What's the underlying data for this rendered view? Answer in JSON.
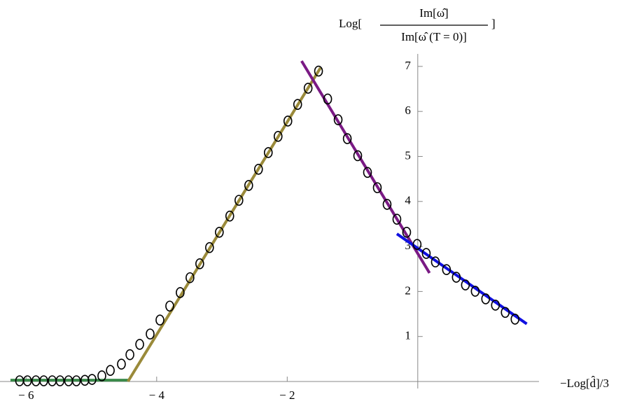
{
  "chart_data": {
    "type": "scatter",
    "x_label": "−Log[d̂]/3",
    "y_label": {
      "prefix": "Log[",
      "numerator": "Im[ω̂]",
      "denominator": "Im[ω̂ (T = 0)]",
      "suffix": "]"
    },
    "xlim": [
      -6.25,
      1.75
    ],
    "ylim": [
      0,
      7.2
    ],
    "xticks": [
      {
        "value": -6,
        "label": "− 6"
      },
      {
        "value": -4,
        "label": "− 4"
      },
      {
        "value": -2,
        "label": "− 2"
      }
    ],
    "yticks": [
      1,
      2,
      3,
      4,
      5,
      6,
      7
    ],
    "points": {
      "color": "#000000",
      "x": [
        -6.1,
        -5.98,
        -5.85,
        -5.73,
        -5.6,
        -5.48,
        -5.35,
        -5.23,
        -5.1,
        -4.99,
        -4.84,
        -4.71,
        -4.54,
        -4.41,
        -4.26,
        -4.1,
        -3.95,
        -3.8,
        -3.64,
        -3.49,
        -3.34,
        -3.19,
        -3.04,
        -2.88,
        -2.74,
        -2.59,
        -2.44,
        -2.29,
        -2.14,
        -1.99,
        -1.84,
        -1.68,
        -1.52,
        -1.38,
        -1.22,
        -1.08,
        -0.92,
        -0.77,
        -0.62,
        -0.47,
        -0.32,
        -0.17,
        -0.01,
        0.13,
        0.27,
        0.44,
        0.59,
        0.73,
        0.88,
        1.04,
        1.19,
        1.34,
        1.49
      ],
      "values": [
        0,
        0,
        0,
        0,
        0,
        0,
        0,
        0,
        0.01,
        0.03,
        0.11,
        0.23,
        0.37,
        0.58,
        0.81,
        1.04,
        1.35,
        1.66,
        1.96,
        2.29,
        2.6,
        2.96,
        3.3,
        3.66,
        4.01,
        4.34,
        4.7,
        5.07,
        5.43,
        5.77,
        6.14,
        6.5,
        6.88,
        6.26,
        5.8,
        5.38,
        5.0,
        4.63,
        4.29,
        3.92,
        3.59,
        3.3,
        3.03,
        2.83,
        2.64,
        2.47,
        2.3,
        2.13,
        1.99,
        1.82,
        1.68,
        1.52,
        1.37
      ]
    },
    "fits": [
      {
        "color": "#3a8a4a",
        "x": [
          -6.24,
          -4.44
        ],
        "values": [
          0.03,
          0.03
        ]
      },
      {
        "color": "#9a8a3a",
        "x": [
          -4.44,
          -1.49
        ],
        "values": [
          0,
          6.97
        ]
      },
      {
        "color": "#7a1a84",
        "x": [
          -1.78,
          0.18
        ],
        "values": [
          7.12,
          2.41
        ]
      },
      {
        "color": "#1010e0",
        "x": [
          -0.32,
          1.67
        ],
        "values": [
          3.28,
          1.28
        ]
      }
    ]
  }
}
